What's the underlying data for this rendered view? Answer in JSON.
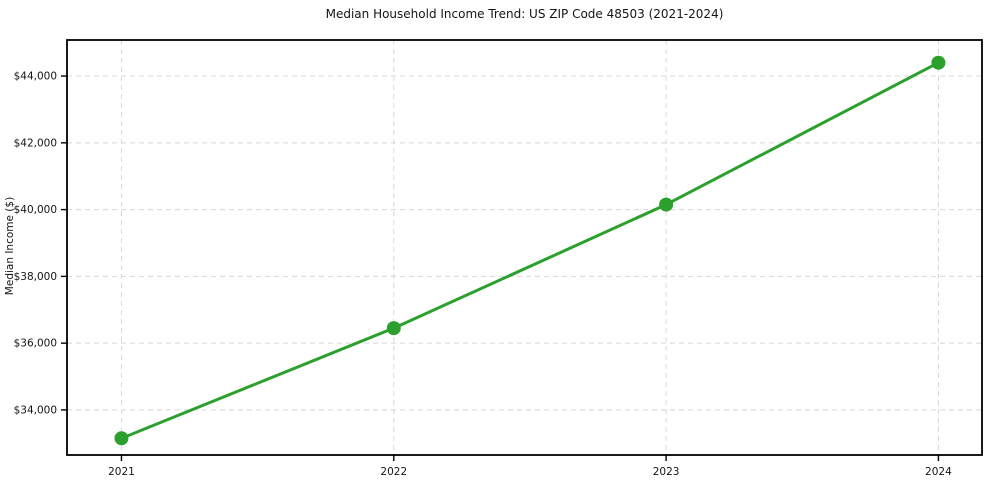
{
  "chart_data": {
    "type": "line",
    "title": "Median Household Income Trend: US ZIP Code 48503 (2021-2024)",
    "xlabel": "",
    "ylabel": "Median Income ($)",
    "x": [
      2021,
      2022,
      2023,
      2024
    ],
    "categories": [
      "2021",
      "2022",
      "2023",
      "2024"
    ],
    "series": [
      {
        "name": "Median Household Income",
        "values": [
          33150,
          36450,
          40150,
          44400
        ]
      }
    ],
    "xlim": [
      2020.8,
      2024.16
    ],
    "ylim": [
      32650,
      45080
    ],
    "yticks": [
      34000,
      36000,
      38000,
      40000,
      42000,
      44000
    ],
    "ytick_labels": [
      "$34,000",
      "$36,000",
      "$38,000",
      "$40,000",
      "$42,000",
      "$44,000"
    ],
    "xticks": [
      2021,
      2022,
      2023,
      2024
    ],
    "xtick_labels": [
      "2021",
      "2022",
      "2023",
      "2024"
    ],
    "grid": true,
    "legend": "none",
    "line_color": "#2ca02c",
    "marker": "circle",
    "marker_color": "#2ca02c",
    "grid_color": "#d8d8d8",
    "spine_color": "#000000",
    "text_color": "#151515"
  }
}
